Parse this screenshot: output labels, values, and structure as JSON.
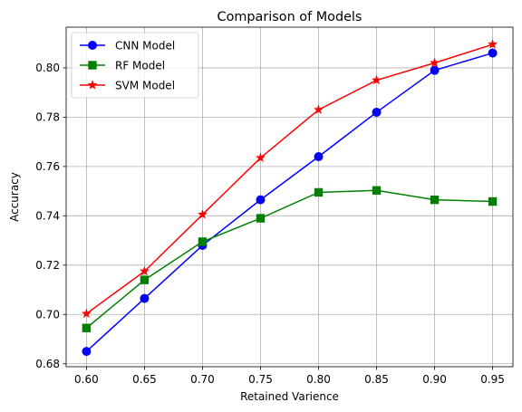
{
  "chart_data": {
    "type": "line",
    "title": "Comparison of Models",
    "xlabel": "Retained Varience",
    "ylabel": "Accuracy",
    "x": [
      0.6,
      0.65,
      0.7,
      0.75,
      0.8,
      0.85,
      0.9,
      0.95
    ],
    "xticks": [
      "0.60",
      "0.65",
      "0.70",
      "0.75",
      "0.80",
      "0.85",
      "0.90",
      "0.95"
    ],
    "yticks": [
      "0.68",
      "0.70",
      "0.72",
      "0.74",
      "0.76",
      "0.78",
      "0.80"
    ],
    "xlim": [
      0.5825,
      0.9675
    ],
    "ylim": [
      0.6788,
      0.8165
    ],
    "grid": true,
    "legend_position": "upper-left",
    "series": [
      {
        "name": "CNN Model",
        "color": "#0000ff",
        "marker": "circle",
        "values": [
          0.685,
          0.7065,
          0.728,
          0.7465,
          0.764,
          0.782,
          0.799,
          0.806
        ]
      },
      {
        "name": "RF Model",
        "color": "#008000",
        "marker": "square",
        "values": [
          0.6945,
          0.714,
          0.7295,
          0.739,
          0.7495,
          0.7503,
          0.7465,
          0.7458
        ]
      },
      {
        "name": "SVM Model",
        "color": "#ff0000",
        "marker": "star",
        "values": [
          0.7003,
          0.7175,
          0.7405,
          0.7635,
          0.783,
          0.795,
          0.802,
          0.8095
        ]
      }
    ]
  }
}
